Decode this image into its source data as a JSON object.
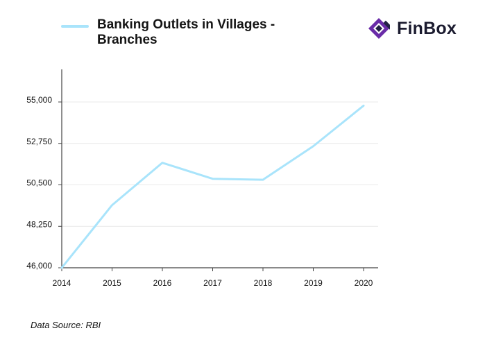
{
  "legend": {
    "label": "Banking Outlets in Villages - Branches"
  },
  "logo": {
    "text": "FinBox",
    "icon": "finbox-logo-icon"
  },
  "footer": {
    "source": "Data Source: RBI"
  },
  "colors": {
    "line": "#a9e4fb",
    "axis": "#444444",
    "grid": "#e9e9e9",
    "brand": "#6a2ca8",
    "brand_dark": "#222244"
  },
  "chart_data": {
    "type": "line",
    "title": "Banking Outlets in Villages - Branches",
    "xlabel": "",
    "ylabel": "",
    "categories": [
      "2014",
      "2015",
      "2016",
      "2017",
      "2018",
      "2019",
      "2020"
    ],
    "series": [
      {
        "name": "Banking Outlets in Villages - Branches",
        "values": [
          46000,
          49400,
          51700,
          50830,
          50780,
          52600,
          54800
        ]
      }
    ],
    "ylim": [
      46000,
      55000
    ],
    "yticks": [
      46000,
      48250,
      50500,
      52750,
      55000
    ],
    "ytick_labels": [
      "46,000",
      "48,250",
      "50,500",
      "52,750",
      "55,000"
    ],
    "grid": true,
    "legend_position": "top-left"
  }
}
